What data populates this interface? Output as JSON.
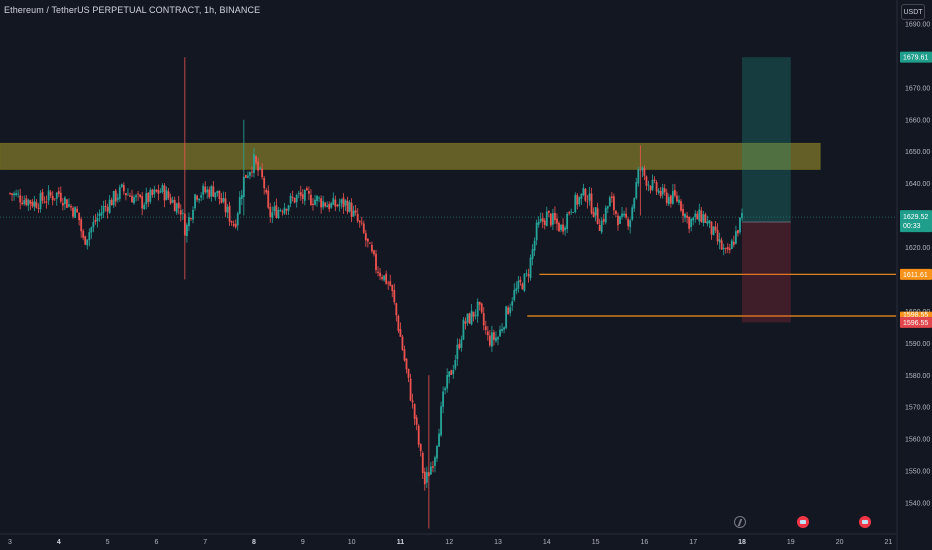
{
  "header": {
    "title": "Ethereum / TetherUS PERPETUAL CONTRACT, 1h, BINANCE",
    "currency": "USDT"
  },
  "colors": {
    "background": "#131722",
    "up": "#26a69a",
    "down": "#ef5350",
    "zone": "#a59a2a",
    "profit": "#1f9e8c",
    "loss": "#f23645",
    "level": "#f7931a",
    "axis_text": "#b2b5be"
  },
  "price_axis": {
    "labels": [
      "1690.00",
      "1670.00",
      "1660.00",
      "1650.00",
      "1640.00",
      "1620.00",
      "1600.00",
      "1590.00",
      "1580.00",
      "1570.00",
      "1560.00",
      "1550.00",
      "1540.00"
    ],
    "min": 1532,
    "max": 1695
  },
  "badges": {
    "target": "1679.61",
    "current_price": "1629.52",
    "countdown": "00:33",
    "level_upper": "1611.61",
    "entry": "1598.55",
    "stop": "1596.55"
  },
  "time_axis": {
    "labels": [
      "3",
      "4",
      "5",
      "6",
      "7",
      "8",
      "9",
      "10",
      "11",
      "12",
      "13",
      "14",
      "15",
      "16",
      "17",
      "18",
      "19",
      "20",
      "21"
    ],
    "bold": [
      "4",
      "8",
      "11",
      "18"
    ]
  },
  "event_markers": [
    "bolt-icon",
    "flag-event-icon",
    "flag-event-icon"
  ],
  "chart_data": {
    "type": "candlestick",
    "title": "",
    "ylim": [
      1532,
      1695
    ],
    "x_days": [
      "3",
      "4",
      "5",
      "6",
      "7",
      "8",
      "9",
      "10",
      "11",
      "12",
      "13",
      "14",
      "15",
      "16",
      "17",
      "18"
    ],
    "close_path": [
      [
        3,
        1637
      ],
      [
        3.5,
        1634
      ],
      [
        4,
        1637
      ],
      [
        4.4,
        1630
      ],
      [
        4.5,
        1622
      ],
      [
        4.9,
        1632
      ],
      [
        5.3,
        1638
      ],
      [
        5.7,
        1634
      ],
      [
        6.1,
        1638
      ],
      [
        6.5,
        1632
      ],
      [
        6.6,
        1625
      ],
      [
        6.8,
        1637
      ],
      [
        7.2,
        1638
      ],
      [
        7.6,
        1627
      ],
      [
        7.8,
        1642
      ],
      [
        8.0,
        1647
      ],
      [
        8.2,
        1640
      ],
      [
        8.3,
        1630
      ],
      [
        8.6,
        1633
      ],
      [
        8.9,
        1636
      ],
      [
        9.3,
        1635
      ],
      [
        9.6,
        1633
      ],
      [
        9.9,
        1634
      ],
      [
        10.2,
        1626
      ],
      [
        10.5,
        1614
      ],
      [
        10.8,
        1608
      ],
      [
        11.0,
        1592
      ],
      [
        11.3,
        1566
      ],
      [
        11.5,
        1546
      ],
      [
        11.7,
        1555
      ],
      [
        11.9,
        1575
      ],
      [
        12.1,
        1584
      ],
      [
        12.3,
        1596
      ],
      [
        12.6,
        1601
      ],
      [
        12.8,
        1591
      ],
      [
        13.0,
        1592
      ],
      [
        13.3,
        1605
      ],
      [
        13.6,
        1611
      ],
      [
        13.8,
        1626
      ],
      [
        14.0,
        1630
      ],
      [
        14.3,
        1626
      ],
      [
        14.5,
        1633
      ],
      [
        14.8,
        1637
      ],
      [
        15.1,
        1627
      ],
      [
        15.3,
        1635
      ],
      [
        15.5,
        1628
      ],
      [
        15.7,
        1629
      ],
      [
        15.9,
        1645
      ],
      [
        16.1,
        1640
      ],
      [
        16.4,
        1636
      ],
      [
        16.7,
        1635
      ],
      [
        16.9,
        1628
      ],
      [
        17.2,
        1630
      ],
      [
        17.5,
        1622
      ],
      [
        17.7,
        1617
      ],
      [
        18.0,
        1629.52
      ]
    ],
    "wick_extremes": [
      {
        "day": 6.6,
        "high": 1679.6,
        "low": 1610
      },
      {
        "day": 7.8,
        "high": 1660,
        "low": 1630
      },
      {
        "day": 11.6,
        "high": 1580,
        "low": 1532
      },
      {
        "day": 15.9,
        "high": 1652,
        "low": 1630
      }
    ],
    "resistance_zone": {
      "from": 1644.5,
      "to": 1652.6,
      "start_day": 3,
      "end_day": 19.6
    },
    "levels": [
      {
        "name": "level-upper",
        "price": 1611.61,
        "start_day": 13.85
      },
      {
        "name": "level-entry",
        "price": 1598.55,
        "start_day": 13.6
      }
    ],
    "position": {
      "type": "long",
      "entry": 1628.0,
      "target": 1679.61,
      "stop": 1596.55,
      "start_day": 18.0,
      "end_day": 19.0
    },
    "current_price": 1629.52
  }
}
